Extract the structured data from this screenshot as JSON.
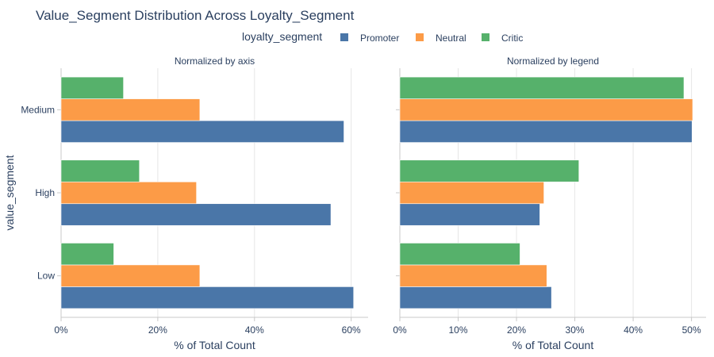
{
  "chart_data": {
    "type": "bar",
    "orientation": "horizontal",
    "title": "Value_Segment Distribution Across Loyalty_Segment",
    "legend": {
      "title": "loyalty_segment",
      "placement": "top-center",
      "entries": [
        "Promoter",
        "Neutral",
        "Critic"
      ]
    },
    "colors": {
      "Promoter": "#4a76a8",
      "Neutral": "#fc9b47",
      "Critic": "#56b16b"
    },
    "ylabel": "value_segment",
    "categories": [
      "Low",
      "High",
      "Medium"
    ],
    "panels": [
      {
        "subtitle": "Normalized by axis",
        "xlabel": "% of Total Count",
        "xlim": [
          0,
          63.5
        ],
        "xticks": [
          0,
          20,
          40,
          60
        ],
        "xtick_labels": [
          "0%",
          "20%",
          "40%",
          "60%"
        ],
        "series": [
          {
            "name": "Promoter",
            "values": [
              60.5,
              55.8,
              58.5
            ]
          },
          {
            "name": "Neutral",
            "values": [
              28.7,
              28.0,
              28.7
            ]
          },
          {
            "name": "Critic",
            "values": [
              10.9,
              16.2,
              12.9
            ]
          }
        ]
      },
      {
        "subtitle": "Normalized by legend",
        "xlabel": "% of Total Count",
        "xlim": [
          0,
          52.5
        ],
        "xticks": [
          0,
          10,
          20,
          30,
          40,
          50
        ],
        "xtick_labels": [
          "0%",
          "10%",
          "20%",
          "30%",
          "40%",
          "50%"
        ],
        "series": [
          {
            "name": "Promoter",
            "values": [
              26.0,
              24.0,
              50.1
            ]
          },
          {
            "name": "Neutral",
            "values": [
              25.2,
              24.7,
              50.2
            ]
          },
          {
            "name": "Critic",
            "values": [
              20.6,
              30.7,
              48.7
            ]
          }
        ]
      }
    ]
  }
}
